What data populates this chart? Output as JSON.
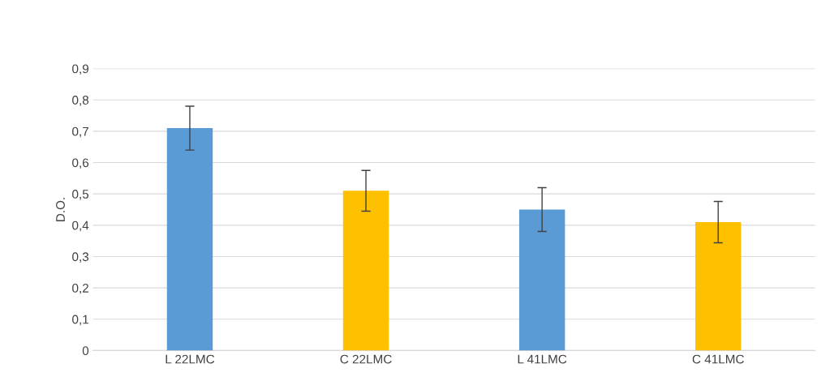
{
  "chart_data": {
    "type": "bar",
    "ylabel": "D.O.",
    "categories": [
      "L 22LMC",
      "C 22LMC",
      "L 41LMC",
      "C 41LMC"
    ],
    "values": [
      0.71,
      0.51,
      0.45,
      0.41
    ],
    "colors": [
      "#5b9bd5",
      "#ffc000",
      "#5b9bd5",
      "#ffc000"
    ],
    "errors": [
      0.07,
      0.065,
      0.07,
      0.066
    ],
    "ylim": [
      0,
      0.9
    ],
    "yticks": [
      {
        "value": 0,
        "label": "0"
      },
      {
        "value": 0.1,
        "label": "0,1"
      },
      {
        "value": 0.2,
        "label": "0,2"
      },
      {
        "value": 0.3,
        "label": "0,3"
      },
      {
        "value": 0.4,
        "label": "0,4"
      },
      {
        "value": 0.5,
        "label": "0,5"
      },
      {
        "value": 0.6,
        "label": "0,6"
      },
      {
        "value": 0.7,
        "label": "0,7"
      },
      {
        "value": 0.8,
        "label": "0,8"
      },
      {
        "value": 0.9,
        "label": "0,9"
      }
    ],
    "grid": "y"
  }
}
